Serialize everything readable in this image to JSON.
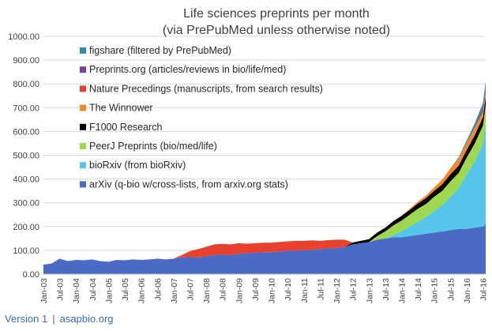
{
  "footer": {
    "version": "Version 1",
    "separator": "|",
    "site": "asapbio.org"
  },
  "chart_data": {
    "type": "area",
    "stacked": true,
    "title": [
      "Life sciences preprints per month",
      "(via PrePubMed unless otherwise noted)"
    ],
    "xlabel": "",
    "ylabel": "",
    "ylim": [
      0,
      1000
    ],
    "yticks": [
      "0.00",
      "100.00",
      "200.00",
      "300.00",
      "400.00",
      "500.00",
      "600.00",
      "700.00",
      "800.00",
      "900.00",
      "1000.00"
    ],
    "xticks": [
      "Jan-03",
      "Jul-03",
      "Jan-04",
      "Jul-04",
      "Jan-05",
      "Jul-05",
      "Jan-06",
      "Jul-06",
      "Jan-07",
      "Jul-07",
      "Jan-08",
      "Jul-08",
      "Jan-09",
      "Jul-09",
      "Jan-10",
      "Jul-10",
      "Jan-11",
      "Jul-11",
      "Jan-12",
      "Jul-12",
      "Jan-13",
      "Jul-13",
      "Jan-14",
      "Jul-14",
      "Jan-15",
      "Jul-15",
      "Jan-16",
      "Jul-16"
    ],
    "grid": "horizontal",
    "legend_position": "top-left",
    "x": [
      "Jan-03",
      "Apr-03",
      "Jul-03",
      "Oct-03",
      "Jan-04",
      "Apr-04",
      "Jul-04",
      "Oct-04",
      "Jan-05",
      "Apr-05",
      "Jul-05",
      "Oct-05",
      "Jan-06",
      "Apr-06",
      "Jul-06",
      "Oct-06",
      "Jan-07",
      "Apr-07",
      "Jul-07",
      "Oct-07",
      "Jan-08",
      "Apr-08",
      "Jul-08",
      "Oct-08",
      "Jan-09",
      "Apr-09",
      "Jul-09",
      "Oct-09",
      "Jan-10",
      "Apr-10",
      "Jul-10",
      "Oct-10",
      "Jan-11",
      "Apr-11",
      "Jul-11",
      "Oct-11",
      "Jan-12",
      "Apr-12",
      "Jul-12",
      "Oct-12",
      "Jan-13",
      "Apr-13",
      "Jul-13",
      "Oct-13",
      "Jan-14",
      "Apr-14",
      "Jul-14",
      "Oct-14",
      "Jan-15",
      "Apr-15",
      "Jul-15",
      "Oct-15",
      "Jan-16",
      "Apr-16",
      "Jul-16",
      "Aug-16"
    ],
    "series": [
      {
        "name": "arXiv (q-bio w/cross-lists, from arxiv.org stats)",
        "color": "#4a6bc4",
        "values": [
          40,
          45,
          65,
          55,
          60,
          58,
          62,
          55,
          52,
          60,
          58,
          62,
          60,
          62,
          65,
          62,
          65,
          70,
          72,
          70,
          75,
          80,
          82,
          80,
          85,
          88,
          90,
          92,
          92,
          95,
          98,
          100,
          100,
          102,
          105,
          108,
          110,
          115,
          125,
          130,
          135,
          145,
          150,
          155,
          155,
          160,
          165,
          170,
          175,
          180,
          185,
          190,
          190,
          195,
          200,
          210
        ]
      },
      {
        "name": "bioRxiv (from bioRxiv)",
        "color": "#55c5ec",
        "values": [
          0,
          0,
          0,
          0,
          0,
          0,
          0,
          0,
          0,
          0,
          0,
          0,
          0,
          0,
          0,
          0,
          0,
          0,
          0,
          0,
          0,
          0,
          0,
          0,
          0,
          0,
          0,
          0,
          0,
          0,
          0,
          0,
          0,
          0,
          0,
          0,
          0,
          0,
          0,
          0,
          0,
          0,
          0,
          10,
          25,
          40,
          55,
          70,
          90,
          110,
          140,
          170,
          230,
          280,
          350,
          420
        ]
      },
      {
        "name": "PeerJ Preprints (bio/med/life)",
        "color": "#9ed84e",
        "values": [
          0,
          0,
          0,
          0,
          0,
          0,
          0,
          0,
          0,
          0,
          0,
          0,
          0,
          0,
          0,
          0,
          0,
          0,
          0,
          0,
          0,
          0,
          0,
          0,
          0,
          0,
          0,
          0,
          0,
          0,
          0,
          0,
          0,
          0,
          0,
          0,
          0,
          0,
          0,
          0,
          0,
          15,
          30,
          40,
          45,
          50,
          55,
          55,
          60,
          60,
          65,
          65,
          70,
          75,
          75,
          80
        ]
      },
      {
        "name": "F1000 Research",
        "color": "#000000",
        "values": [
          0,
          0,
          0,
          0,
          0,
          0,
          0,
          0,
          0,
          0,
          0,
          0,
          0,
          0,
          0,
          0,
          0,
          0,
          0,
          0,
          0,
          0,
          0,
          0,
          0,
          0,
          0,
          0,
          0,
          0,
          0,
          0,
          0,
          0,
          0,
          0,
          0,
          0,
          8,
          10,
          12,
          15,
          15,
          18,
          20,
          20,
          22,
          25,
          25,
          28,
          30,
          30,
          32,
          35,
          35,
          38
        ]
      },
      {
        "name": "The Winnower",
        "color": "#f5882d",
        "values": [
          0,
          0,
          0,
          0,
          0,
          0,
          0,
          0,
          0,
          0,
          0,
          0,
          0,
          0,
          0,
          0,
          0,
          0,
          0,
          0,
          0,
          0,
          0,
          0,
          0,
          0,
          0,
          0,
          0,
          0,
          0,
          0,
          0,
          0,
          0,
          0,
          0,
          0,
          0,
          0,
          0,
          0,
          0,
          0,
          0,
          5,
          8,
          10,
          15,
          20,
          25,
          30,
          30,
          30,
          25,
          20
        ]
      },
      {
        "name": "Nature Precedings (manuscripts, from search results)",
        "color": "#e8412e",
        "values": [
          0,
          0,
          0,
          0,
          0,
          0,
          0,
          0,
          0,
          0,
          0,
          0,
          0,
          0,
          0,
          0,
          0,
          10,
          25,
          35,
          40,
          45,
          45,
          45,
          45,
          40,
          40,
          40,
          40,
          40,
          40,
          40,
          40,
          40,
          35,
          35,
          35,
          30,
          0,
          0,
          0,
          0,
          0,
          0,
          0,
          0,
          0,
          0,
          0,
          0,
          0,
          0,
          0,
          0,
          0,
          0
        ]
      },
      {
        "name": "Preprints.org (articles/reviews in bio/life/med)",
        "color": "#7a3fa0",
        "values": [
          0,
          0,
          0,
          0,
          0,
          0,
          0,
          0,
          0,
          0,
          0,
          0,
          0,
          0,
          0,
          0,
          0,
          0,
          0,
          0,
          0,
          0,
          0,
          0,
          0,
          0,
          0,
          0,
          0,
          0,
          0,
          0,
          0,
          0,
          0,
          0,
          0,
          0,
          0,
          0,
          0,
          0,
          0,
          0,
          0,
          0,
          0,
          0,
          0,
          0,
          0,
          0,
          0,
          5,
          15,
          20
        ]
      },
      {
        "name": "figshare (filtered by PrePubMed)",
        "color": "#2d8fa8",
        "values": [
          0,
          0,
          0,
          0,
          0,
          0,
          0,
          0,
          0,
          0,
          0,
          0,
          0,
          0,
          0,
          0,
          0,
          0,
          0,
          0,
          0,
          0,
          0,
          0,
          0,
          0,
          0,
          0,
          0,
          0,
          0,
          0,
          0,
          0,
          0,
          0,
          0,
          0,
          0,
          0,
          0,
          0,
          0,
          0,
          0,
          0,
          0,
          0,
          0,
          0,
          0,
          5,
          10,
          15,
          20,
          25
        ]
      }
    ]
  }
}
